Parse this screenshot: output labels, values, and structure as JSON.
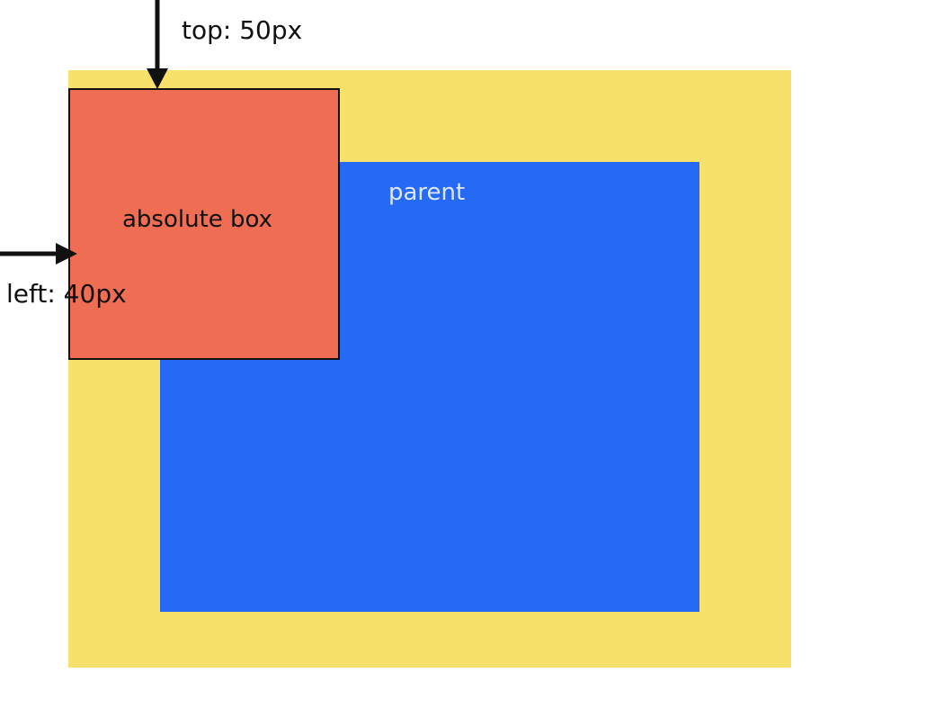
{
  "labels": {
    "parent": "parent",
    "absolute_box": "absolute box",
    "top": "top: 50px",
    "left": "left: 40px"
  },
  "colors": {
    "outer": "#f7e16b",
    "parent": "#246af4",
    "absolute_box": "#ef6d53",
    "arrow": "#111111",
    "parent_text": "#dfe6f2"
  }
}
